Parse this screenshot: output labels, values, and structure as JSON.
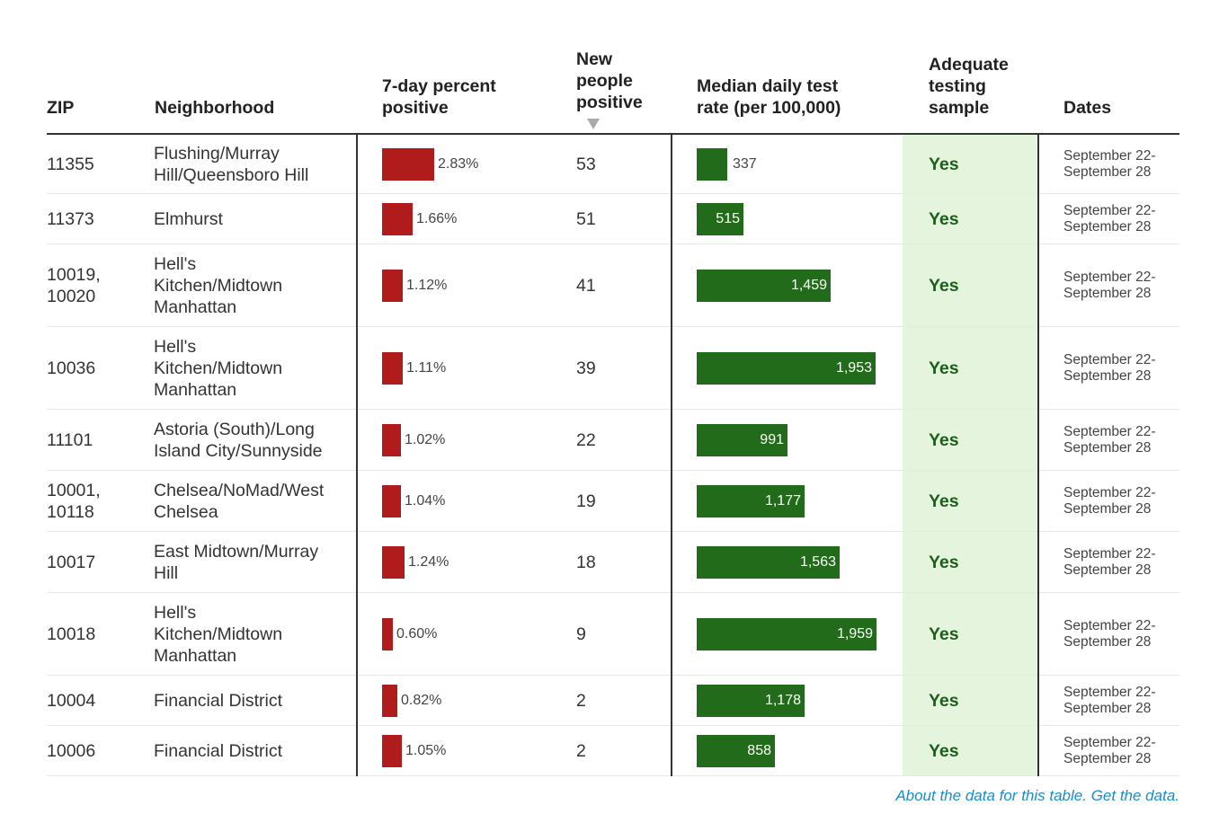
{
  "headers": {
    "zip": "ZIP",
    "neighborhood": "Neighborhood",
    "percent_positive_line1": "7-day percent",
    "percent_positive_line2": "positive",
    "new_positive_line1": "New",
    "new_positive_line2": "people",
    "new_positive_line3": "positive",
    "test_rate_line1": "Median daily test",
    "test_rate_line2": "rate (per 100,000)",
    "adequate_line1": "Adequate",
    "adequate_line2": "testing",
    "adequate_line3": "sample",
    "dates": "Dates"
  },
  "chart_data": {
    "type": "table",
    "columns": [
      "ZIP",
      "Neighborhood",
      "7-day percent positive",
      "New people positive",
      "Median daily test rate (per 100,000)",
      "Adequate testing sample",
      "Dates"
    ],
    "sort": {
      "column": "New people positive",
      "direction": "descending"
    },
    "rows": [
      {
        "zip": "11355",
        "nbhd": [
          "Flushing/Murray",
          "Hill/Queensboro Hill"
        ],
        "pct": 2.83,
        "pct_label": "2.83%",
        "new": "53",
        "rate": 337,
        "rate_label": "337",
        "adequate": "Yes",
        "dates": [
          "September 22-",
          "September 28"
        ]
      },
      {
        "zip": "11373",
        "nbhd": [
          "Elmhurst"
        ],
        "pct": 1.66,
        "pct_label": "1.66%",
        "new": "51",
        "rate": 515,
        "rate_label": "515",
        "adequate": "Yes",
        "dates": [
          "September 22-",
          "September 28"
        ]
      },
      {
        "zip": "10019, 10020",
        "nbhd": [
          "Hell's",
          "Kitchen/Midtown",
          "Manhattan"
        ],
        "pct": 1.12,
        "pct_label": "1.12%",
        "new": "41",
        "rate": 1459,
        "rate_label": "1,459",
        "adequate": "Yes",
        "dates": [
          "September 22-",
          "September 28"
        ]
      },
      {
        "zip": "10036",
        "nbhd": [
          "Hell's",
          "Kitchen/Midtown",
          "Manhattan"
        ],
        "pct": 1.11,
        "pct_label": "1.11%",
        "new": "39",
        "rate": 1953,
        "rate_label": "1,953",
        "adequate": "Yes",
        "dates": [
          "September 22-",
          "September 28"
        ]
      },
      {
        "zip": "11101",
        "nbhd": [
          "Astoria (South)/Long",
          "Island City/Sunnyside"
        ],
        "pct": 1.02,
        "pct_label": "1.02%",
        "new": "22",
        "rate": 991,
        "rate_label": "991",
        "adequate": "Yes",
        "dates": [
          "September 22-",
          "September 28"
        ]
      },
      {
        "zip": "10001, 10118",
        "nbhd": [
          "Chelsea/NoMad/West",
          "Chelsea"
        ],
        "pct": 1.04,
        "pct_label": "1.04%",
        "new": "19",
        "rate": 1177,
        "rate_label": "1,177",
        "adequate": "Yes",
        "dates": [
          "September 22-",
          "September 28"
        ]
      },
      {
        "zip": "10017",
        "nbhd": [
          "East Midtown/Murray",
          "Hill"
        ],
        "pct": 1.24,
        "pct_label": "1.24%",
        "new": "18",
        "rate": 1563,
        "rate_label": "1,563",
        "adequate": "Yes",
        "dates": [
          "September 22-",
          "September 28"
        ]
      },
      {
        "zip": "10018",
        "nbhd": [
          "Hell's",
          "Kitchen/Midtown",
          "Manhattan"
        ],
        "pct": 0.6,
        "pct_label": "0.60%",
        "new": "9",
        "rate": 1959,
        "rate_label": "1,959",
        "adequate": "Yes",
        "dates": [
          "September 22-",
          "September 28"
        ]
      },
      {
        "zip": "10004",
        "nbhd": [
          "Financial District"
        ],
        "pct": 0.82,
        "pct_label": "0.82%",
        "new": "2",
        "rate": 1178,
        "rate_label": "1,178",
        "adequate": "Yes",
        "dates": [
          "September 22-",
          "September 28"
        ]
      },
      {
        "zip": "10006",
        "nbhd": [
          "Financial District"
        ],
        "pct": 1.05,
        "pct_label": "1.05%",
        "new": "2",
        "rate": 858,
        "rate_label": "858",
        "adequate": "Yes",
        "dates": [
          "September 22-",
          "September 28"
        ]
      }
    ]
  },
  "colors": {
    "percent_bar": "#b01b1b",
    "rate_bar": "#226b1b",
    "adequate_bg": "#e5f4dd",
    "link": "#1a8ccc"
  },
  "footer": {
    "about_link": "About the data for this table.",
    "get_link": "Get the data."
  }
}
